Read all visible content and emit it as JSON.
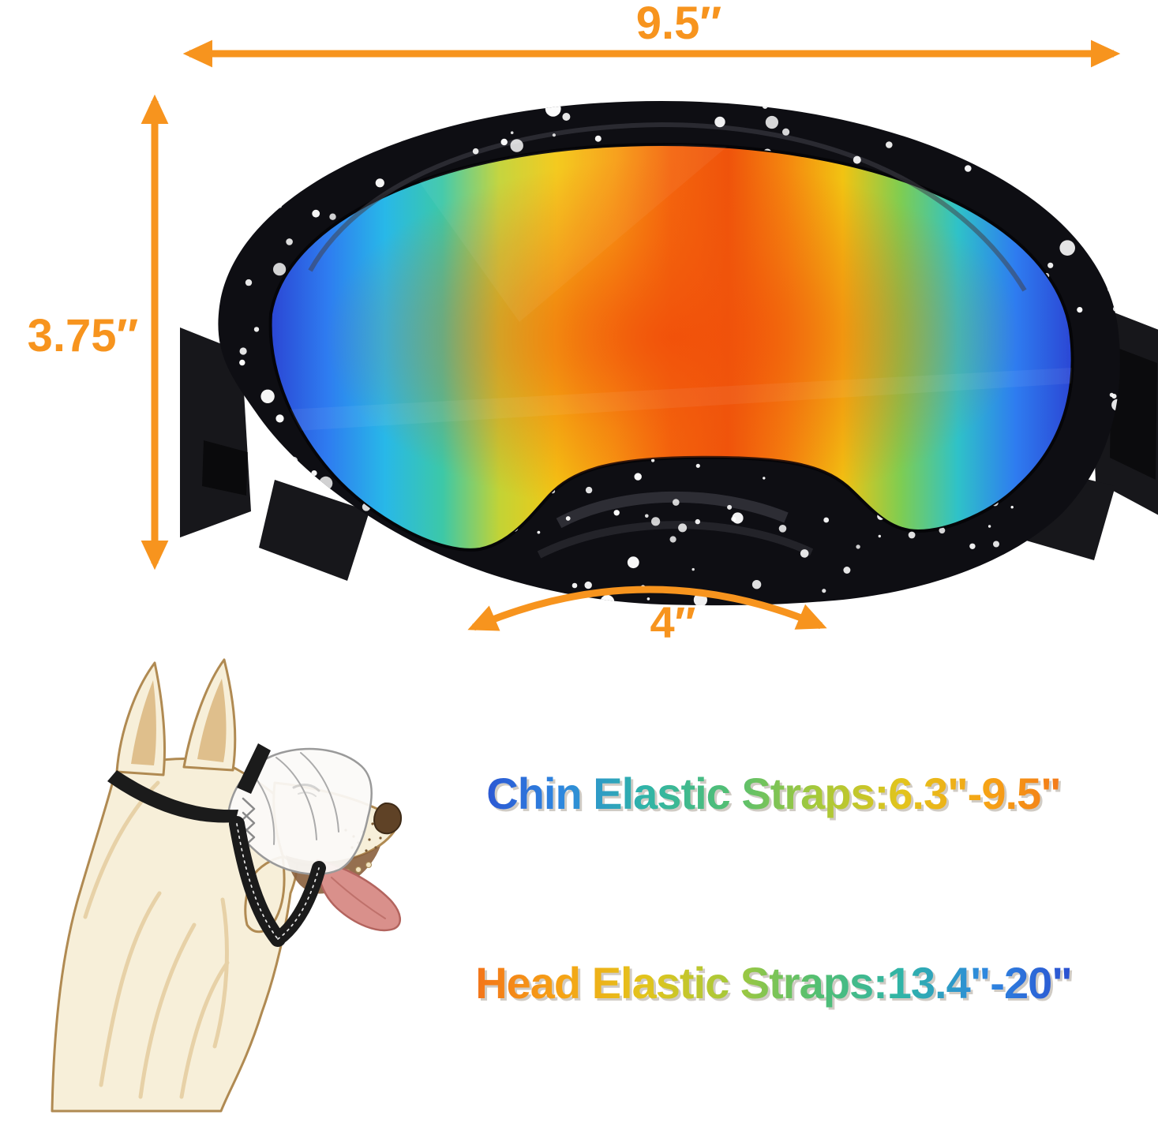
{
  "page": {
    "background": "#ffffff"
  },
  "annotations": {
    "arrow_color": "#F7941E",
    "width": {
      "label": "9.5″"
    },
    "height": {
      "label": "3.75″"
    },
    "bridge": {
      "label": "4″"
    }
  },
  "specs": {
    "chin_strap": {
      "label": "Chin Elastic Straps:6.3\"-9.5\"",
      "gradient": [
        "#2a2f8f",
        "#2b4fd0",
        "#2e86e0",
        "#2fb4a8",
        "#53bf72",
        "#a6c93a",
        "#e3c41c",
        "#f6a215",
        "#f3731a",
        "#ee4411"
      ]
    },
    "head_strap": {
      "label": "Head Elastic Straps:13.4\"-20\"",
      "gradient": [
        "#ee3f10",
        "#f3731a",
        "#f6a215",
        "#e3c41c",
        "#a6c93a",
        "#53bf72",
        "#2fb4a8",
        "#2e86e0",
        "#2b4fd0",
        "#2a2f8f"
      ]
    }
  },
  "goggles": {
    "frame_color": "#0e0e13",
    "speckle_color": "#ffffff",
    "strap_color": "#17171b",
    "lens_gradient": [
      "#2b46d4",
      "#2e7cf0",
      "#28b8e8",
      "#3cc8a8",
      "#c3d335",
      "#f4c814",
      "#f79e12",
      "#f4650d",
      "#ef530b",
      "#f4860f",
      "#f2c312",
      "#7ecd52",
      "#2fc2c8",
      "#2e7cf0",
      "#2b46d4"
    ]
  },
  "dog": {
    "fur_light": "#f7efd9",
    "fur_mid": "#e2c897",
    "outline": "#b08a52",
    "tongue": "#d9908b",
    "mask": "#fbfaf7",
    "mask_line": "#9a9a9a",
    "strap": "#1b1b1b",
    "nose": "#5f4226"
  }
}
